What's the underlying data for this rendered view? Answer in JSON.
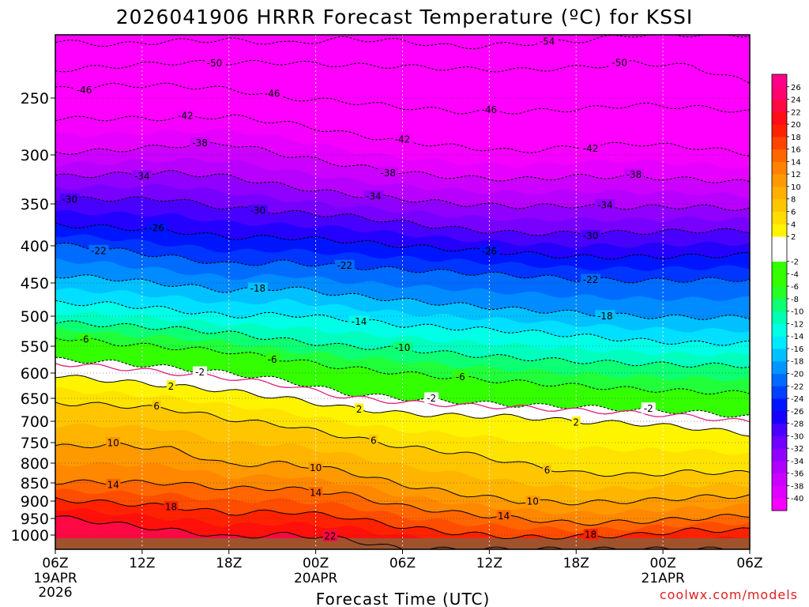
{
  "chart_data": {
    "type": "heatmap",
    "title": "2026041906 HRRR Forecast Temperature (ºC) for KSSI",
    "xlabel": "Forecast Time (UTC)",
    "ylabel": "",
    "credit": "coolwx.com/models",
    "x_range_hours": [
      0,
      48
    ],
    "y_range_hpa": [
      200,
      1030
    ],
    "x_ticks": [
      {
        "h": 0,
        "label": "06Z",
        "date": "19APR",
        "year": "2026"
      },
      {
        "h": 6,
        "label": "12Z",
        "date": "",
        "year": ""
      },
      {
        "h": 12,
        "label": "18Z",
        "date": "",
        "year": ""
      },
      {
        "h": 18,
        "label": "00Z",
        "date": "20APR",
        "year": ""
      },
      {
        "h": 24,
        "label": "06Z",
        "date": "",
        "year": ""
      },
      {
        "h": 30,
        "label": "12Z",
        "date": "",
        "year": ""
      },
      {
        "h": 36,
        "label": "18Z",
        "date": "",
        "year": ""
      },
      {
        "h": 42,
        "label": "00Z",
        "date": "21APR",
        "year": ""
      },
      {
        "h": 48,
        "label": "06Z",
        "date": "",
        "year": ""
      }
    ],
    "y_ticks": [
      250,
      300,
      350,
      400,
      450,
      500,
      550,
      600,
      650,
      700,
      750,
      800,
      850,
      900,
      950,
      1000
    ],
    "surface_pressure_hpa": 1012,
    "colorbar": {
      "min": -42,
      "max": 28,
      "step": 2,
      "labels": [
        26,
        24,
        22,
        20,
        18,
        16,
        14,
        12,
        10,
        8,
        6,
        4,
        2,
        -2,
        -4,
        -6,
        -8,
        -10,
        -12,
        -14,
        -16,
        -18,
        -20,
        -22,
        -24,
        -26,
        -28,
        -30,
        -32,
        -34,
        -36,
        -38,
        -40
      ],
      "stops": [
        {
          "t": -42,
          "color": "#ff00ff"
        },
        {
          "t": -36,
          "color": "#c000ff"
        },
        {
          "t": -30,
          "color": "#6000ff"
        },
        {
          "t": -26,
          "color": "#0000ff"
        },
        {
          "t": -20,
          "color": "#0080ff"
        },
        {
          "t": -14,
          "color": "#00ffff"
        },
        {
          "t": -10,
          "color": "#00ff99"
        },
        {
          "t": -6,
          "color": "#33ff00"
        },
        {
          "t": -2,
          "color": "#33ff00"
        },
        {
          "t": -1.9,
          "color": "#ffffff"
        },
        {
          "t": 1.9,
          "color": "#ffffff"
        },
        {
          "t": 2,
          "color": "#ffff00"
        },
        {
          "t": 8,
          "color": "#ffbb00"
        },
        {
          "t": 14,
          "color": "#ff7700"
        },
        {
          "t": 20,
          "color": "#ff1100"
        },
        {
          "t": 26,
          "color": "#ff0088"
        },
        {
          "t": 28,
          "color": "#ff0088"
        }
      ]
    },
    "series": [
      {
        "name": "-54",
        "p": [
          205,
          208,
          205,
          204,
          207,
          203,
          205,
          210,
          207,
          205,
          200,
          200,
          200
        ]
      },
      {
        "name": "-50",
        "p": [
          228,
          225,
          222,
          222,
          222,
          224,
          225,
          227,
          228,
          226,
          222,
          225,
          238
        ]
      },
      {
        "name": "-46",
        "p": [
          243,
          240,
          240,
          243,
          250,
          253,
          258,
          262,
          262,
          260,
          256,
          258,
          262
        ]
      },
      {
        "name": "-42",
        "p": [
          268,
          268,
          268,
          266,
          272,
          281,
          288,
          293,
          297,
          293,
          290,
          293,
          299
        ]
      },
      {
        "name": "-38",
        "p": [
          298,
          296,
          292,
          290,
          300,
          310,
          318,
          323,
          325,
          322,
          322,
          325,
          328
        ]
      },
      {
        "name": "-34",
        "p": [
          322,
          320,
          318,
          322,
          332,
          340,
          345,
          350,
          353,
          352,
          354,
          353,
          356
        ]
      },
      {
        "name": "-30",
        "p": [
          345,
          345,
          345,
          355,
          360,
          364,
          372,
          380,
          385,
          385,
          384,
          382,
          382
        ]
      },
      {
        "name": "-26",
        "p": [
          375,
          378,
          382,
          390,
          390,
          394,
          400,
          405,
          410,
          415,
          415,
          414,
          412
        ]
      },
      {
        "name": "-22",
        "p": [
          398,
          405,
          415,
          425,
          422,
          428,
          432,
          436,
          440,
          445,
          447,
          446,
          445
        ]
      },
      {
        "name": "-18",
        "p": [
          440,
          444,
          452,
          462,
          457,
          468,
          476,
          483,
          490,
          495,
          500,
          502,
          502
        ]
      },
      {
        "name": "-14",
        "p": [
          480,
          482,
          490,
          500,
          497,
          505,
          515,
          520,
          525,
          532,
          540,
          545,
          545
        ]
      },
      {
        "name": "-10",
        "p": [
          510,
          515,
          520,
          528,
          540,
          550,
          555,
          565,
          572,
          578,
          582,
          585,
          586
        ]
      },
      {
        "name": "-6",
        "p": [
          535,
          545,
          552,
          560,
          575,
          590,
          600,
          610,
          618,
          625,
          632,
          636,
          640
        ]
      },
      {
        "name": "-2",
        "p": [
          575,
          580,
          590,
          600,
          615,
          640,
          650,
          658,
          665,
          668,
          675,
          680,
          690
        ]
      },
      {
        "name": "2",
        "p": [
          605,
          615,
          625,
          635,
          650,
          670,
          683,
          688,
          690,
          700,
          705,
          715,
          730
        ]
      },
      {
        "name": "6",
        "p": [
          660,
          665,
          673,
          695,
          710,
          735,
          760,
          775,
          800,
          825,
          830,
          822,
          825
        ]
      },
      {
        "name": "10",
        "p": [
          760,
          755,
          765,
          805,
          800,
          820,
          855,
          880,
          900,
          905,
          900,
          890,
          885
        ]
      },
      {
        "name": "14",
        "p": [
          848,
          848,
          850,
          865,
          865,
          880,
          915,
          935,
          950,
          965,
          960,
          950,
          940
        ]
      },
      {
        "name": "18",
        "p": [
          895,
          905,
          915,
          935,
          930,
          945,
          975,
          995,
          1005,
          1003,
          1000,
          985,
          985
        ]
      },
      {
        "name": "22",
        "p": [
          945,
          965,
          985,
          1005,
          998,
          1008,
          1030,
          1030,
          1030,
          1030,
          1030,
          1030,
          1030
        ]
      }
    ],
    "series_hours": [
      0,
      4,
      8,
      12,
      16,
      20,
      24,
      28,
      32,
      36,
      40,
      44,
      48
    ],
    "contour_labels": [
      {
        "text": "-54",
        "h": 34,
        "line": "-54"
      },
      {
        "text": "-50",
        "h": 11,
        "line": "-50"
      },
      {
        "text": "-50",
        "h": 39,
        "line": "-50"
      },
      {
        "text": "-46",
        "h": 2,
        "line": "-46"
      },
      {
        "text": "-46",
        "h": 15,
        "line": "-46"
      },
      {
        "text": "-46",
        "h": 30,
        "line": "-46"
      },
      {
        "text": "-42",
        "h": 9,
        "line": "-42"
      },
      {
        "text": "-42",
        "h": 24,
        "line": "-42"
      },
      {
        "text": "-42",
        "h": 37,
        "line": "-42"
      },
      {
        "text": "-38",
        "h": 10,
        "line": "-38"
      },
      {
        "text": "-38",
        "h": 23,
        "line": "-38"
      },
      {
        "text": "-38",
        "h": 40,
        "line": "-38"
      },
      {
        "text": "-34",
        "h": 6,
        "line": "-34"
      },
      {
        "text": "-34",
        "h": 22,
        "line": "-34"
      },
      {
        "text": "-34",
        "h": 38,
        "line": "-34"
      },
      {
        "text": "-30",
        "h": 1,
        "line": "-30"
      },
      {
        "text": "-30",
        "h": 14,
        "line": "-30"
      },
      {
        "text": "-30",
        "h": 37,
        "line": "-30"
      },
      {
        "text": "-26",
        "h": 7,
        "line": "-26"
      },
      {
        "text": "-26",
        "h": 30,
        "line": "-26"
      },
      {
        "text": "-22",
        "h": 3,
        "line": "-22"
      },
      {
        "text": "-22",
        "h": 20,
        "line": "-22"
      },
      {
        "text": "-22",
        "h": 37,
        "line": "-22"
      },
      {
        "text": "-18",
        "h": 14,
        "line": "-18"
      },
      {
        "text": "-18",
        "h": 38,
        "line": "-18"
      },
      {
        "text": "-14",
        "h": 21,
        "line": "-14"
      },
      {
        "text": "-10",
        "h": 24,
        "line": "-10"
      },
      {
        "text": "-6",
        "h": 2,
        "line": "-6"
      },
      {
        "text": "-6",
        "h": 15,
        "line": "-6"
      },
      {
        "text": "-6",
        "h": 28,
        "line": "-6"
      },
      {
        "text": "-2",
        "h": 10,
        "line": "-2"
      },
      {
        "text": "-2",
        "h": 26,
        "line": "-2"
      },
      {
        "text": "-2",
        "h": 41,
        "line": "-2"
      },
      {
        "text": "2",
        "h": 8,
        "line": "2"
      },
      {
        "text": "2",
        "h": 21,
        "line": "2"
      },
      {
        "text": "2",
        "h": 36,
        "line": "2"
      },
      {
        "text": "6",
        "h": 7,
        "line": "6"
      },
      {
        "text": "6",
        "h": 22,
        "line": "6"
      },
      {
        "text": "6",
        "h": 34,
        "line": "6"
      },
      {
        "text": "10",
        "h": 4,
        "line": "10"
      },
      {
        "text": "10",
        "h": 18,
        "line": "10"
      },
      {
        "text": "10",
        "h": 33,
        "line": "10"
      },
      {
        "text": "14",
        "h": 4,
        "line": "14"
      },
      {
        "text": "14",
        "h": 18,
        "line": "14"
      },
      {
        "text": "14",
        "h": 31,
        "line": "14"
      },
      {
        "text": "18",
        "h": 8,
        "line": "18"
      },
      {
        "text": "18",
        "h": 37,
        "line": "18"
      },
      {
        "text": "22",
        "h": 19,
        "line": "22"
      }
    ]
  }
}
